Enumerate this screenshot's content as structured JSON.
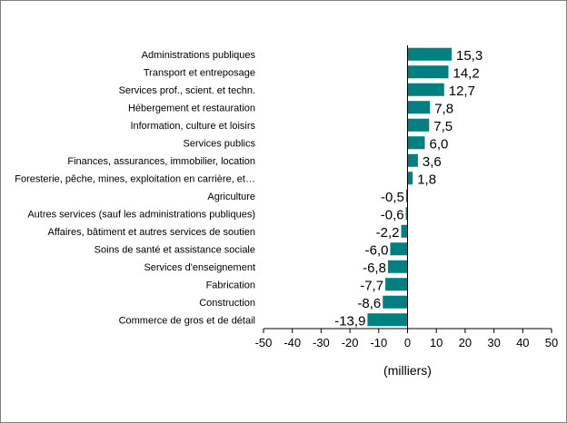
{
  "chart_data": {
    "type": "bar",
    "orientation": "horizontal",
    "title": "",
    "xlabel": "(milliers)",
    "ylabel": "",
    "xlim": [
      -50,
      50
    ],
    "xticks": [
      -50,
      -40,
      -30,
      -20,
      -10,
      0,
      10,
      20,
      30,
      40,
      50
    ],
    "grid": false,
    "legend": "none",
    "bar_color": "#008080",
    "categories": [
      "Administrations publiques",
      "Transport et entreposage",
      "Services prof., scient. et techn.",
      "Hébergement et restauration",
      "Information, culture et loisirs",
      "Services publics",
      "Finances, assurances, immobilier, location",
      "Foresterie, pêche, mines, exploitation en carrière, et…",
      "Agriculture",
      "Autres services (sauf les administrations publiques)",
      "Affaires, bâtiment et autres services de soutien",
      "Soins de santé et assistance sociale",
      "Services d'enseignement",
      "Fabrication",
      "Construction",
      "Commerce de gros et de détail"
    ],
    "values": [
      15.3,
      14.2,
      12.7,
      7.8,
      7.5,
      6.0,
      3.6,
      1.8,
      -0.5,
      -0.6,
      -2.2,
      -6.0,
      -6.8,
      -7.7,
      -8.6,
      -13.9
    ],
    "value_labels": [
      "15,3",
      "14,2",
      "12,7",
      "7,8",
      "7,5",
      "6,0",
      "3,6",
      "1,8",
      "-0,5",
      "-0,6",
      "-2,2",
      "-6,0",
      "-6,8",
      "-7,7",
      "-8,6",
      "-13,9"
    ]
  }
}
